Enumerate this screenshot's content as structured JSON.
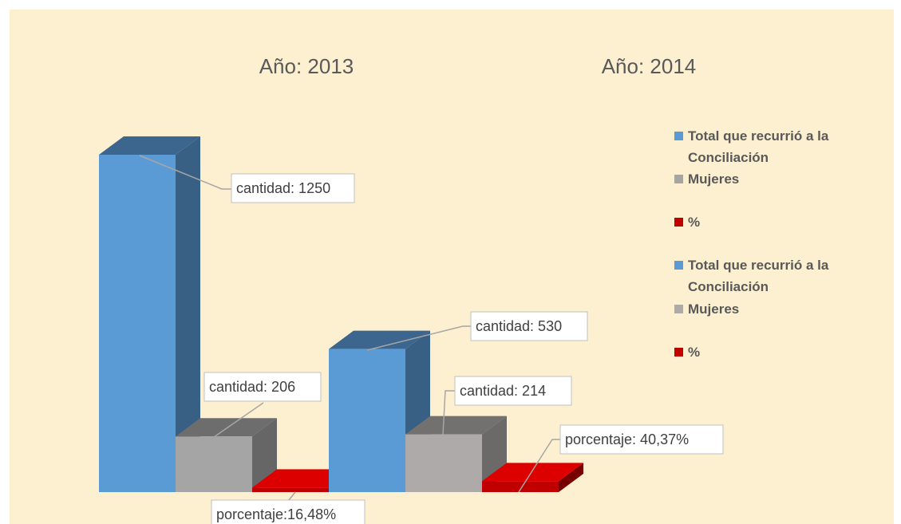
{
  "chart_data": {
    "type": "bar3d",
    "categories": [
      "Año: 2013",
      "Año: 2014"
    ],
    "series": [
      {
        "name": "Total que recurrió a la Conciliación",
        "color": "#5b9bd5",
        "values": [
          1250,
          null
        ],
        "value_labels": [
          "cantidad: 1250",
          null
        ]
      },
      {
        "name": "Mujeres",
        "color": "#a5a5a5",
        "values": [
          206,
          null
        ],
        "value_labels": [
          "cantidad: 206",
          null
        ]
      },
      {
        "name": "%",
        "color": "#c00000",
        "values": [
          16.48,
          null
        ],
        "value_labels": [
          "porcentaje:16,48%",
          null
        ]
      },
      {
        "name": "Total que recurrió a la Conciliación",
        "color": "#5b9bd5",
        "values": [
          null,
          530
        ],
        "value_labels": [
          null,
          "cantidad: 530"
        ]
      },
      {
        "name": "Mujeres",
        "color": "#aeaaaa",
        "values": [
          null,
          214
        ],
        "value_labels": [
          null,
          "cantidad: 214"
        ]
      },
      {
        "name": "%",
        "color": "#c00000",
        "values": [
          null,
          40.37
        ],
        "value_labels": [
          null,
          "porcentaje: 40,37%"
        ]
      }
    ]
  }
}
